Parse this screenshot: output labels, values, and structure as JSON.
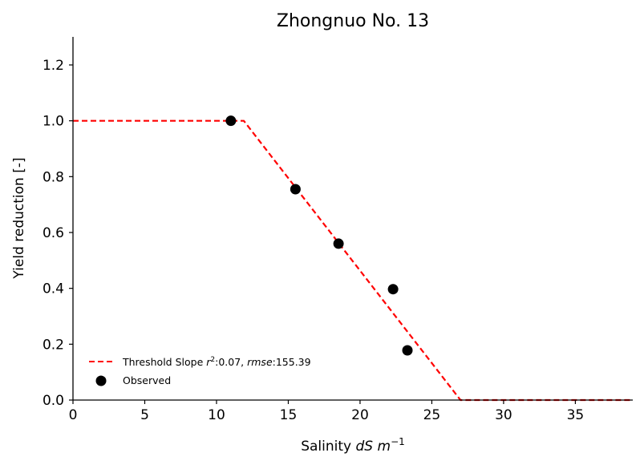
{
  "chart_data": {
    "type": "scatter",
    "title": "Zhongnuo No. 13",
    "xlabel": {
      "prefix": "Salinity ",
      "italic": "dS m",
      "sup": "−1"
    },
    "ylabel": "Yield reduction [-]",
    "xlim": [
      0,
      39
    ],
    "ylim": [
      0,
      1.3
    ],
    "xticks": [
      0,
      5,
      10,
      15,
      20,
      25,
      30,
      35
    ],
    "yticks": [
      0.0,
      0.2,
      0.4,
      0.6,
      0.8,
      1.0,
      1.2
    ],
    "ytick_labels": [
      "0.0",
      "0.2",
      "0.4",
      "0.6",
      "0.8",
      "1.0",
      "1.2"
    ],
    "grid": false,
    "legend_position": "lower-left",
    "series": [
      {
        "kind": "line",
        "style": "dashed",
        "color": "#ff0000",
        "legend": {
          "prefix": "Threshold Slope ",
          "r2_sym": "r",
          "r2_sup": "2",
          "r2_val": ":0.07, ",
          "rmse_sym": "rmse",
          "rmse_val": ":155.39"
        },
        "x": [
          0,
          11.9,
          27.0,
          39
        ],
        "y": [
          1.0,
          1.0,
          0.0,
          0.0
        ]
      },
      {
        "kind": "scatter",
        "color": "#000000",
        "name": "Observed",
        "x": [
          11.0,
          15.5,
          18.5,
          22.3,
          23.3
        ],
        "y": [
          1.0,
          0.755,
          0.56,
          0.397,
          0.178
        ]
      }
    ]
  }
}
